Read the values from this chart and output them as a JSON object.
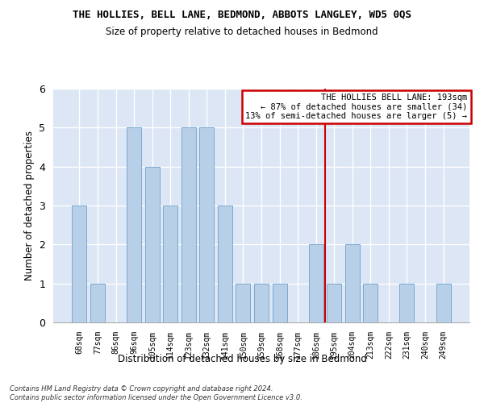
{
  "title": "THE HOLLIES, BELL LANE, BEDMOND, ABBOTS LANGLEY, WD5 0QS",
  "subtitle": "Size of property relative to detached houses in Bedmond",
  "xlabel": "Distribution of detached houses by size in Bedmond",
  "ylabel": "Number of detached properties",
  "categories": [
    "68sqm",
    "77sqm",
    "86sqm",
    "96sqm",
    "105sqm",
    "114sqm",
    "123sqm",
    "132sqm",
    "141sqm",
    "150sqm",
    "159sqm",
    "168sqm",
    "177sqm",
    "186sqm",
    "195sqm",
    "204sqm",
    "213sqm",
    "222sqm",
    "231sqm",
    "240sqm",
    "249sqm"
  ],
  "values": [
    3,
    1,
    0,
    5,
    4,
    3,
    5,
    5,
    3,
    1,
    1,
    1,
    0,
    2,
    1,
    2,
    1,
    0,
    1,
    0,
    1
  ],
  "bar_color": "#b8cfe8",
  "bar_edge_color": "#7aaad0",
  "figure_bg": "#ffffff",
  "axes_bg": "#dce6f5",
  "grid_color": "#ffffff",
  "marker_color": "#cc0000",
  "ylim": [
    0,
    6
  ],
  "yticks": [
    0,
    1,
    2,
    3,
    4,
    5,
    6
  ],
  "annotation_title": "THE HOLLIES BELL LANE: 193sqm",
  "annotation_line1": "← 87% of detached houses are smaller (34)",
  "annotation_line2": "13% of semi-detached houses are larger (5) →",
  "annotation_box_facecolor": "#ffffff",
  "annotation_border_color": "#cc0000",
  "footer_line1": "Contains HM Land Registry data © Crown copyright and database right 2024.",
  "footer_line2": "Contains public sector information licensed under the Open Government Licence v3.0."
}
